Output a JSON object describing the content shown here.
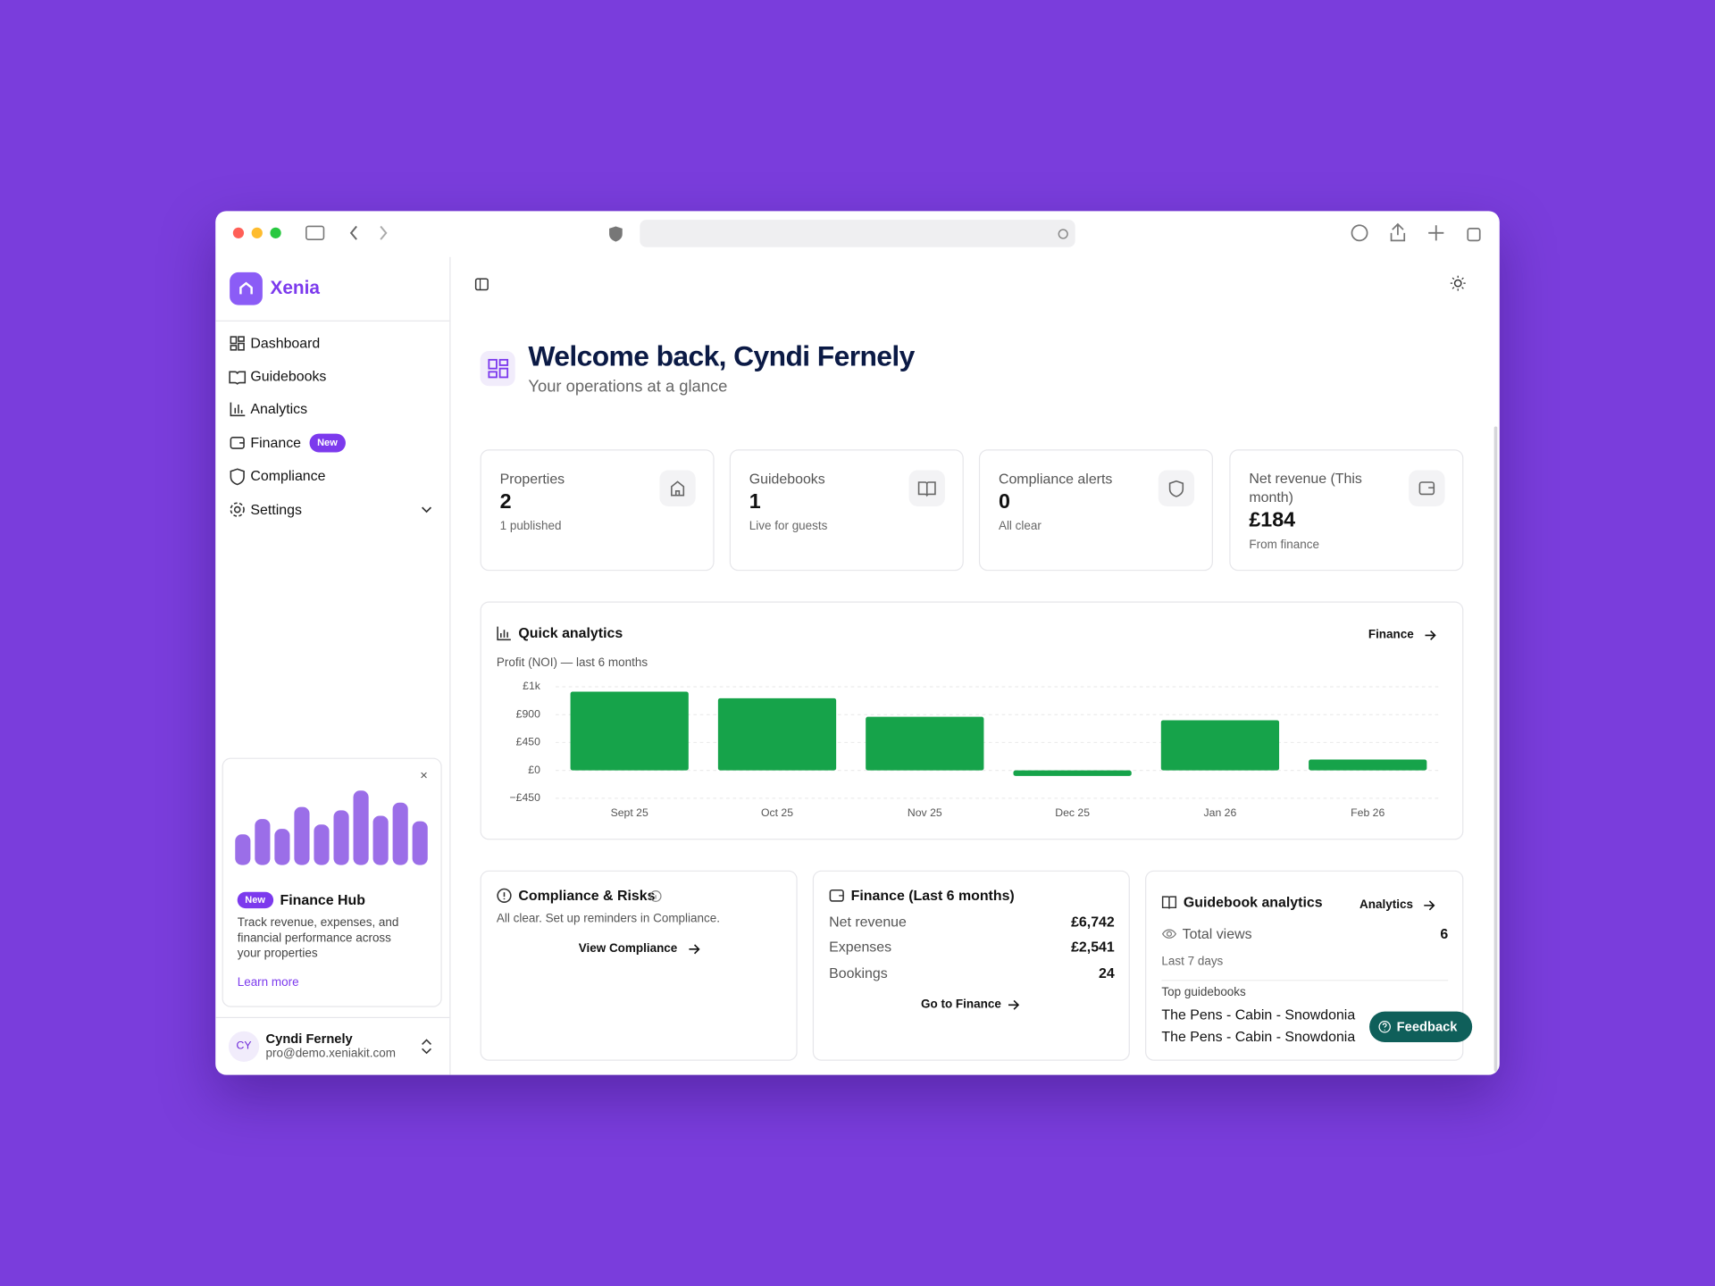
{
  "sidebar": {
    "brand": "Xenia",
    "nav": [
      {
        "label": "Dashboard"
      },
      {
        "label": "Guidebooks"
      },
      {
        "label": "Analytics"
      },
      {
        "label": "Finance",
        "badge": "New"
      },
      {
        "label": "Compliance"
      },
      {
        "label": "Settings"
      }
    ],
    "promo": {
      "badge": "New",
      "title": "Finance Hub",
      "text": "Track revenue, expenses, and financial performance across your properties",
      "link": "Learn more"
    },
    "user": {
      "initials": "CY",
      "name": "Cyndi Fernely",
      "email": "pro@demo.xeniakit.com"
    }
  },
  "header": {
    "title": "Welcome back, Cyndi Fernely",
    "subtitle": "Your operations at a glance"
  },
  "stats": [
    {
      "label": "Properties",
      "value": 2,
      "note": "1 published"
    },
    {
      "label": "Guidebooks",
      "value": 1,
      "note": "Live for guests"
    },
    {
      "label": "Compliance alerts",
      "value": 0,
      "note": "All clear"
    },
    {
      "label": "Net revenue (This month)",
      "value": "£184",
      "note": "From finance"
    }
  ],
  "quick_analytics": {
    "title": "Quick analytics",
    "link": "Finance"
  },
  "chart_data": {
    "type": "bar",
    "subtitle": "Profit (NOI) — last 6 months",
    "categories": [
      "Sept 25",
      "Oct 25",
      "Nov 25",
      "Dec 25",
      "Jan 26",
      "Feb 26"
    ],
    "values": [
      1270,
      1165,
      865,
      -90,
      810,
      175
    ],
    "color": "#16a34a",
    "ylim": [
      -450,
      1350
    ],
    "yticks": [
      {
        "value": -450,
        "label": "−£450"
      },
      {
        "value": 0,
        "label": "£0"
      },
      {
        "value": 450,
        "label": "£450"
      },
      {
        "value": 900,
        "label": "£900"
      },
      {
        "value": 1350,
        "label": "£1k"
      }
    ],
    "grid": true
  },
  "compliance": {
    "title": "Compliance & Risks",
    "text": "All clear. Set up reminders in Compliance.",
    "link": "View Compliance"
  },
  "finance": {
    "title": "Finance (Last 6 months)",
    "rows": [
      {
        "label": "Net revenue",
        "value": "£6,742"
      },
      {
        "label": "Expenses",
        "value": "£2,541"
      },
      {
        "label": "Bookings",
        "value": 24
      }
    ],
    "link": "Go to Finance"
  },
  "guidebook_analytics": {
    "title": "Guidebook analytics",
    "link": "Analytics",
    "views_label": "Total views",
    "views": 6,
    "period": "Last 7 days",
    "top_label": "Top guidebooks",
    "top": [
      "The Pens - Cabin - Snowdonia",
      "The Pens - Cabin - Snowdonia"
    ]
  },
  "feedback": "Feedback"
}
